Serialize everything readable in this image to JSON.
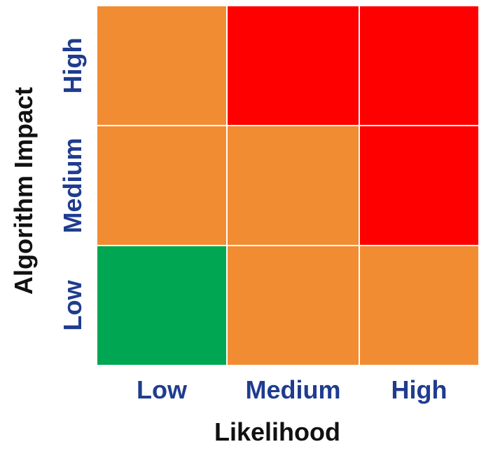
{
  "chart_data": {
    "type": "heatmap",
    "title": "",
    "xlabel": "Likelihood",
    "ylabel": "Algorithm Impact",
    "x_categories": [
      "Low",
      "Medium",
      "High"
    ],
    "y_categories": [
      "Low",
      "Medium",
      "High"
    ],
    "cells": [
      {
        "x": "Low",
        "y": "High",
        "color": "#f28c33"
      },
      {
        "x": "Medium",
        "y": "High",
        "color": "#ff0000"
      },
      {
        "x": "High",
        "y": "High",
        "color": "#ff0000"
      },
      {
        "x": "Low",
        "y": "Medium",
        "color": "#f28c33"
      },
      {
        "x": "Medium",
        "y": "Medium",
        "color": "#f28c33"
      },
      {
        "x": "High",
        "y": "Medium",
        "color": "#ff0000"
      },
      {
        "x": "Low",
        "y": "Low",
        "color": "#00a651"
      },
      {
        "x": "Medium",
        "y": "Low",
        "color": "#f28c33"
      },
      {
        "x": "High",
        "y": "Low",
        "color": "#f28c33"
      }
    ],
    "colors": {
      "tick_label": "#1f3c8f",
      "axis_title": "#111111",
      "grid_line": "#ffffff"
    }
  }
}
